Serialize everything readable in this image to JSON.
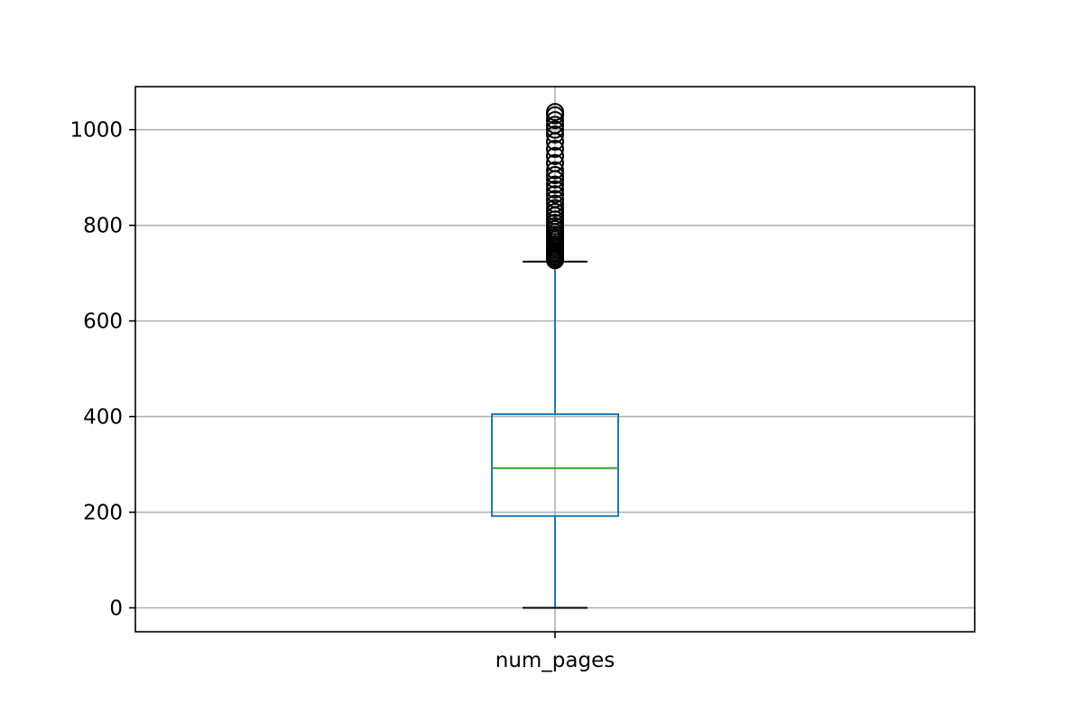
{
  "chart_data": {
    "type": "box",
    "title": "",
    "xlabel": "",
    "ylabel": "",
    "categories": [
      "num_pages"
    ],
    "ylim": [
      -50,
      1090
    ],
    "yticks": [
      0,
      200,
      400,
      600,
      800,
      1000
    ],
    "grid": true,
    "boxes": [
      {
        "category": "num_pages",
        "whisker_low": 0,
        "q1": 192,
        "median": 292,
        "q3": 405,
        "whisker_high": 724,
        "outliers": [
          727,
          730,
          733,
          736,
          740,
          744,
          748,
          752,
          756,
          760,
          765,
          770,
          775,
          780,
          786,
          792,
          798,
          805,
          812,
          820,
          828,
          836,
          845,
          855,
          865,
          875,
          885,
          896,
          905,
          915,
          930,
          945,
          960,
          975,
          990,
          1000,
          1010,
          1020,
          1030,
          1037
        ]
      }
    ],
    "colors": {
      "box": "#1f77b4",
      "median": "#2ca02c",
      "whisker_cap": "#000000",
      "outlier": "#000000"
    }
  }
}
